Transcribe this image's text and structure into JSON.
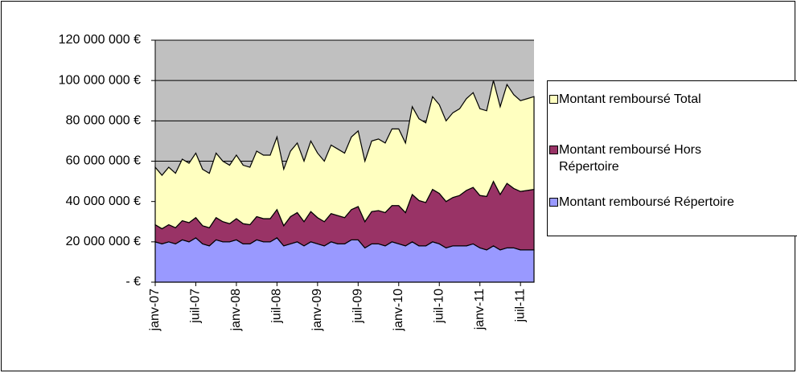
{
  "chart_data": {
    "type": "stacked_area",
    "categories": [
      "janv-07",
      null,
      null,
      null,
      null,
      null,
      "juil-07",
      null,
      null,
      null,
      null,
      null,
      "janv-08",
      null,
      null,
      null,
      null,
      null,
      "juil-08",
      null,
      null,
      null,
      null,
      null,
      "janv-09",
      null,
      null,
      null,
      null,
      null,
      "juil-09",
      null,
      null,
      null,
      null,
      null,
      "janv-10",
      null,
      null,
      null,
      null,
      null,
      "juil-10",
      null,
      null,
      null,
      null,
      null,
      "janv-11",
      null,
      null,
      null,
      null,
      null,
      "juil-11",
      null,
      null
    ],
    "series": [
      {
        "name": "Montant remboursé Répertoire",
        "color": "#9999ff",
        "values": [
          20000000,
          19000000,
          20000000,
          19000000,
          21000000,
          20000000,
          22000000,
          19000000,
          18000000,
          21000000,
          20000000,
          20000000,
          21000000,
          19000000,
          19000000,
          21000000,
          20000000,
          20000000,
          22000000,
          18000000,
          19000000,
          20000000,
          18000000,
          20000000,
          19000000,
          18000000,
          20000000,
          19000000,
          19000000,
          21000000,
          21000000,
          17000000,
          19000000,
          19000000,
          18000000,
          20000000,
          19000000,
          18000000,
          20000000,
          18000000,
          18000000,
          20000000,
          19000000,
          17000000,
          18000000,
          18000000,
          18000000,
          19000000,
          17000000,
          16000000,
          18000000,
          16000000,
          17000000,
          17000000,
          16000000,
          16000000,
          16000000
        ]
      },
      {
        "name": "Montant remboursé Hors Répertoire",
        "color": "#993366",
        "values": [
          8500000,
          7500000,
          8500000,
          8000000,
          9500000,
          9500000,
          10000000,
          9000000,
          9000000,
          11000000,
          10000000,
          9000000,
          10500000,
          10000000,
          9500000,
          11500000,
          11500000,
          11500000,
          14000000,
          10000000,
          13500000,
          14500000,
          12000000,
          15000000,
          13000000,
          12000000,
          14000000,
          14000000,
          13000000,
          15000000,
          16500000,
          13000000,
          16000000,
          16500000,
          16500000,
          18000000,
          19000000,
          16500000,
          23500000,
          22500000,
          21500000,
          26000000,
          25000000,
          23000000,
          24000000,
          25000000,
          27500000,
          28000000,
          26000000,
          26500000,
          32000000,
          27500000,
          32000000,
          29500000,
          29000000,
          29500000,
          30000000
        ]
      },
      {
        "name": "Montant remboursé Total",
        "color": "#ffffc0",
        "values": [
          28500000,
          26500000,
          28500000,
          27000000,
          30500000,
          29500000,
          32000000,
          28000000,
          27000000,
          32000000,
          30000000,
          29000000,
          31500000,
          29000000,
          28500000,
          32500000,
          31500000,
          31500000,
          36000000,
          28000000,
          32500000,
          34500000,
          30000000,
          35000000,
          32000000,
          30000000,
          34000000,
          33000000,
          32000000,
          36000000,
          37500000,
          30000000,
          35000000,
          35500000,
          34500000,
          38000000,
          38000000,
          34500000,
          43500000,
          40500000,
          39500000,
          46000000,
          44000000,
          40000000,
          42000000,
          43000000,
          45500000,
          47000000,
          43000000,
          42500000,
          50000000,
          43500000,
          49000000,
          46500000,
          45000000,
          45500000,
          46000000
        ]
      }
    ],
    "ylim": [
      0,
      120000000
    ],
    "yticks": [
      {
        "value": 0,
        "label": "-       €"
      },
      {
        "value": 20000000,
        "label": "20 000 000 €"
      },
      {
        "value": 40000000,
        "label": "40 000 000 €"
      },
      {
        "value": 60000000,
        "label": "60 000 000 €"
      },
      {
        "value": 80000000,
        "label": "80 000 000 €"
      },
      {
        "value": 100000000,
        "label": "100 000 000 €"
      },
      {
        "value": 120000000,
        "label": "120 000 000 €"
      }
    ],
    "grid": true,
    "legend": "right",
    "plot_background": "#c0c0c0"
  }
}
